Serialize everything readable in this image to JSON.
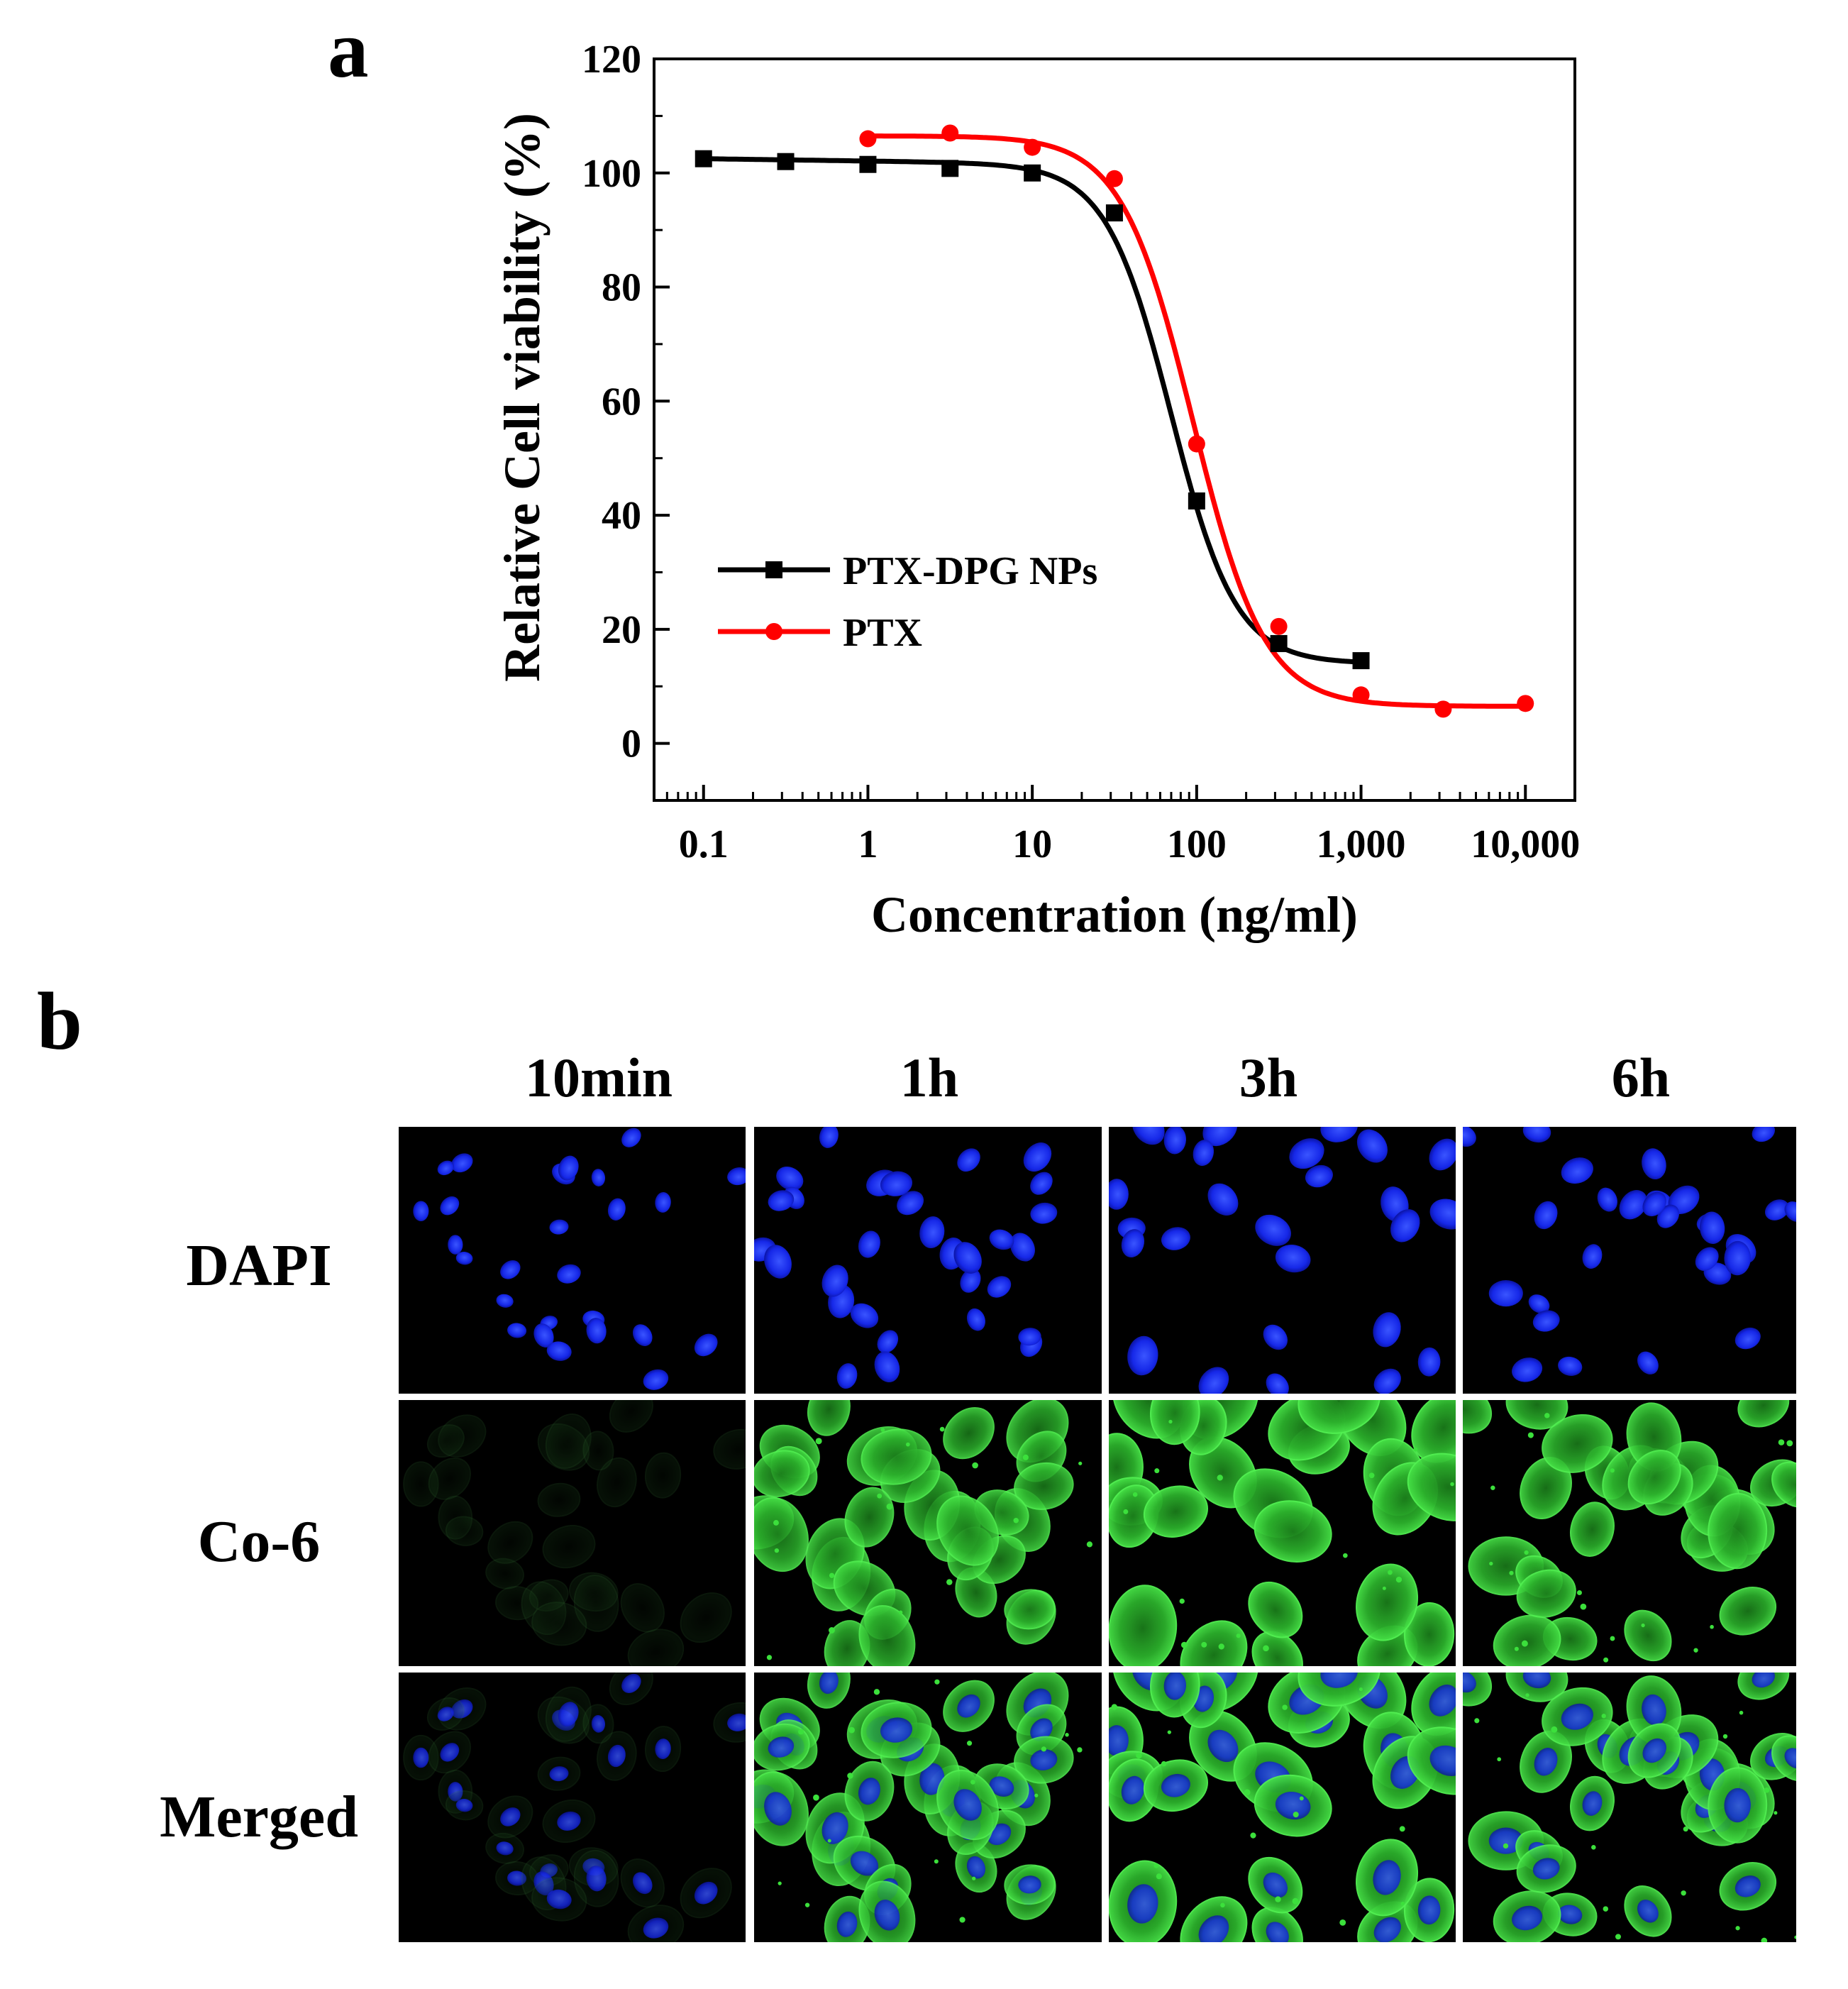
{
  "panel_a_label": "a",
  "panel_b_label": "b",
  "chart_data": {
    "type": "scatter",
    "title": "",
    "xlabel": "Concentration (ng/ml)",
    "ylabel": "Relative Cell viability (%)",
    "xscale": "log",
    "xlim": [
      0.05,
      20000
    ],
    "ylim": [
      -10,
      120
    ],
    "x_ticks": [
      0.1,
      1,
      10,
      100,
      1000,
      10000
    ],
    "x_tick_labels": [
      "0.1",
      "1",
      "10",
      "100",
      "1,000",
      "10,000"
    ],
    "y_ticks": [
      0,
      20,
      40,
      60,
      80,
      100,
      120
    ],
    "y_tick_labels": [
      "0",
      "20",
      "40",
      "60",
      "80",
      "100",
      "120"
    ],
    "grid": false,
    "legend_position": "lower-left",
    "fitted_curves": true,
    "series": [
      {
        "name": "PTX-DPG NPs",
        "color": "#000000",
        "marker": "square",
        "x": [
          0.1,
          0.316,
          1,
          3.16,
          10,
          31.6,
          100,
          316,
          1000
        ],
        "y": [
          102.5,
          102,
          101.5,
          100.8,
          100,
          93,
          42.5,
          17.5,
          14.5
        ],
        "fit": {
          "top": 102.5,
          "bottom": 14,
          "ec50": 70,
          "hill": 2.2,
          "slope": -0.4
        }
      },
      {
        "name": "PTX",
        "color": "#ff0000",
        "marker": "circle",
        "x": [
          1,
          3.16,
          10,
          31.6,
          100,
          316,
          1000,
          3162,
          10000
        ],
        "y": [
          106,
          107,
          104.5,
          99,
          52.5,
          20.5,
          8.5,
          6,
          7
        ],
        "fit": {
          "top": 106.5,
          "bottom": 6.5,
          "ec50": 95,
          "hill": 2.0,
          "slope": 0
        }
      }
    ]
  },
  "panel_b": {
    "columns": [
      "10min",
      "1h",
      "3h",
      "6h"
    ],
    "rows": [
      "DAPI",
      "Co-6",
      "Merged"
    ],
    "colors": {
      "background": "#000000",
      "dapi_blue": "#1a2dff",
      "coumarin6_green": "#3ce03c",
      "separator": "#ffffff"
    }
  }
}
